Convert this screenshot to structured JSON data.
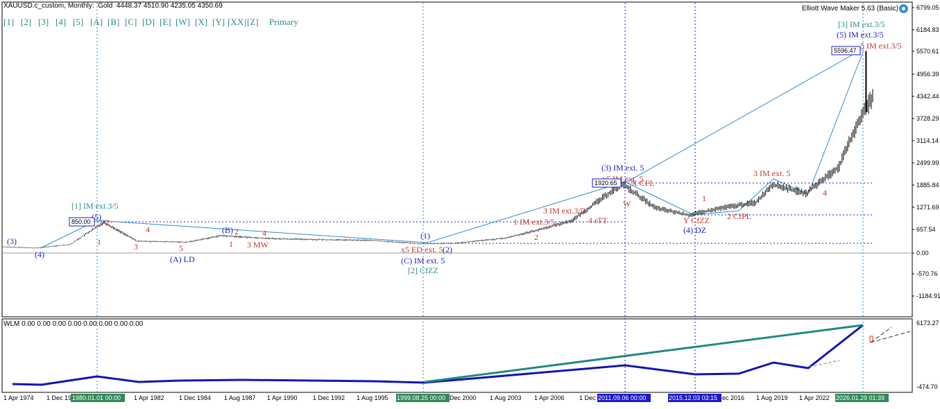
{
  "header": {
    "symbol": "XAUUSD.c_custom",
    "timeframe": "Monthly",
    "instrument": "Gold",
    "ohlc": "4448.37 4510.90 4235.05 4350.69"
  },
  "ea_label": "Elliott Wave Maker 5.63 (Basic)",
  "toolbar": [
    "[1]",
    "[2]",
    "[3]",
    "[4]",
    "[5]",
    "[A]",
    "[B]",
    "[C]",
    "[D]",
    "[E]",
    "[W]",
    "[X]",
    "[Y]",
    "[XX]",
    "[Z]",
    "Primary"
  ],
  "colors": {
    "teal": "#2e8b8b",
    "blue": "#1a1acc",
    "red": "#c0392b",
    "candle": "#000000",
    "wlm_blue": "#1414b4",
    "wlm_teal": "#1f8a82"
  },
  "price_axis": [
    "6799.05",
    "6184.83",
    "5570.61",
    "4956.39",
    "4342.44",
    "3728.29",
    "3114.14",
    "2499.99",
    "1885.84",
    "1271.69",
    "657.54",
    "0.00",
    "-570.76",
    "-1184.91"
  ],
  "time_axis": [
    "1 Apr 1974",
    "1 Dec 19",
    "1980.01.01 00:00",
    "1 Apr 1982",
    "1 Dec 1984",
    "1 Aug 1987",
    "1 Apr 1990",
    "1 Dec 1992",
    "1 Aug 1995",
    "1999.08.25 00:00",
    "Dec 2000",
    "1 Aug 2003",
    "1 Apr 2006",
    "1 Dec",
    "2011.09.06 00:00",
    "2015.12.03 03:15",
    "ec 2016",
    "1 Aug 2019",
    "1 Apr 2022",
    "2026.01.29 01:39"
  ],
  "price_boxes": [
    "850.00",
    "1920.65",
    "5596.47"
  ],
  "labels": [
    {
      "t": "(3)",
      "c": "blue"
    },
    {
      "t": "(4)",
      "c": "blue"
    },
    {
      "t": "[1] IM ext.3/5",
      "c": "teal"
    },
    {
      "t": "(5)",
      "c": "blue"
    },
    {
      "t": "2",
      "c": "red"
    },
    {
      "t": "1",
      "c": "red"
    },
    {
      "t": "3",
      "c": "red"
    },
    {
      "t": "4",
      "c": "red"
    },
    {
      "t": "5",
      "c": "red"
    },
    {
      "t": "(A) LD",
      "c": "blue"
    },
    {
      "t": "(B)",
      "c": "blue"
    },
    {
      "t": "2",
      "c": "red"
    },
    {
      "t": "1",
      "c": "red"
    },
    {
      "t": "3 MW",
      "c": "red"
    },
    {
      "t": "4",
      "c": "red"
    },
    {
      "t": "(1)",
      "c": "blue"
    },
    {
      "t": "x5 ED ext. 5",
      "c": "red"
    },
    {
      "t": "(2)",
      "c": "blue"
    },
    {
      "t": "(C) IM ext. 5",
      "c": "blue"
    },
    {
      "t": "[2] CfZZ",
      "c": "teal"
    },
    {
      "t": "1 IM ext.3/5",
      "c": "red"
    },
    {
      "t": "2",
      "c": "red"
    },
    {
      "t": "3 IM ext.3/5",
      "c": "red"
    },
    {
      "t": "4 rTT",
      "c": "red"
    },
    {
      "t": "(3) IM ext. 5",
      "c": "blue"
    },
    {
      "t": "x5 IM ext. 5",
      "c": "red"
    },
    {
      "t": "X CFL",
      "c": "red"
    },
    {
      "t": "W",
      "c": "red"
    },
    {
      "t": "Y CfZZ",
      "c": "red"
    },
    {
      "t": "(4) DZ",
      "c": "blue"
    },
    {
      "t": "1",
      "c": "red"
    },
    {
      "t": "2 CfPL",
      "c": "red"
    },
    {
      "t": "3 IM ext. 5",
      "c": "red"
    },
    {
      "t": "4",
      "c": "red"
    },
    {
      "t": "[3] IM ext.3/5",
      "c": "teal"
    },
    {
      "t": "(5) IM ext.3/5",
      "c": "blue"
    },
    {
      "t": "5 IM ext.3/5",
      "c": "red"
    }
  ],
  "indicator": {
    "title": "WLM 0.00 0.00 0.00 0.00 0.00 0.00 0.00 0.00",
    "axis": [
      "6173.27",
      "-474.70"
    ]
  },
  "chart_data": {
    "type": "line",
    "title": "",
    "xlabel": "",
    "ylabel": "",
    "x": [
      1974,
      1976,
      1978,
      1980,
      1982,
      1985,
      1987,
      1990,
      1993,
      1996,
      1999,
      2001,
      2004,
      2006,
      2008,
      2011,
      2013,
      2015,
      2017,
      2019,
      2020,
      2022,
      2024,
      2025,
      2026
    ],
    "series": [
      {
        "values": [
          170,
          140,
          240,
          850,
          330,
          300,
          480,
          400,
          370,
          350,
          255,
          270,
          410,
          640,
          900,
          1920,
          1250,
          1050,
          1250,
          1400,
          1900,
          1650,
          2400,
          3500,
          4350
        ]
      }
    ],
    "ylim": [
      -1184.91,
      6799.05
    ]
  }
}
